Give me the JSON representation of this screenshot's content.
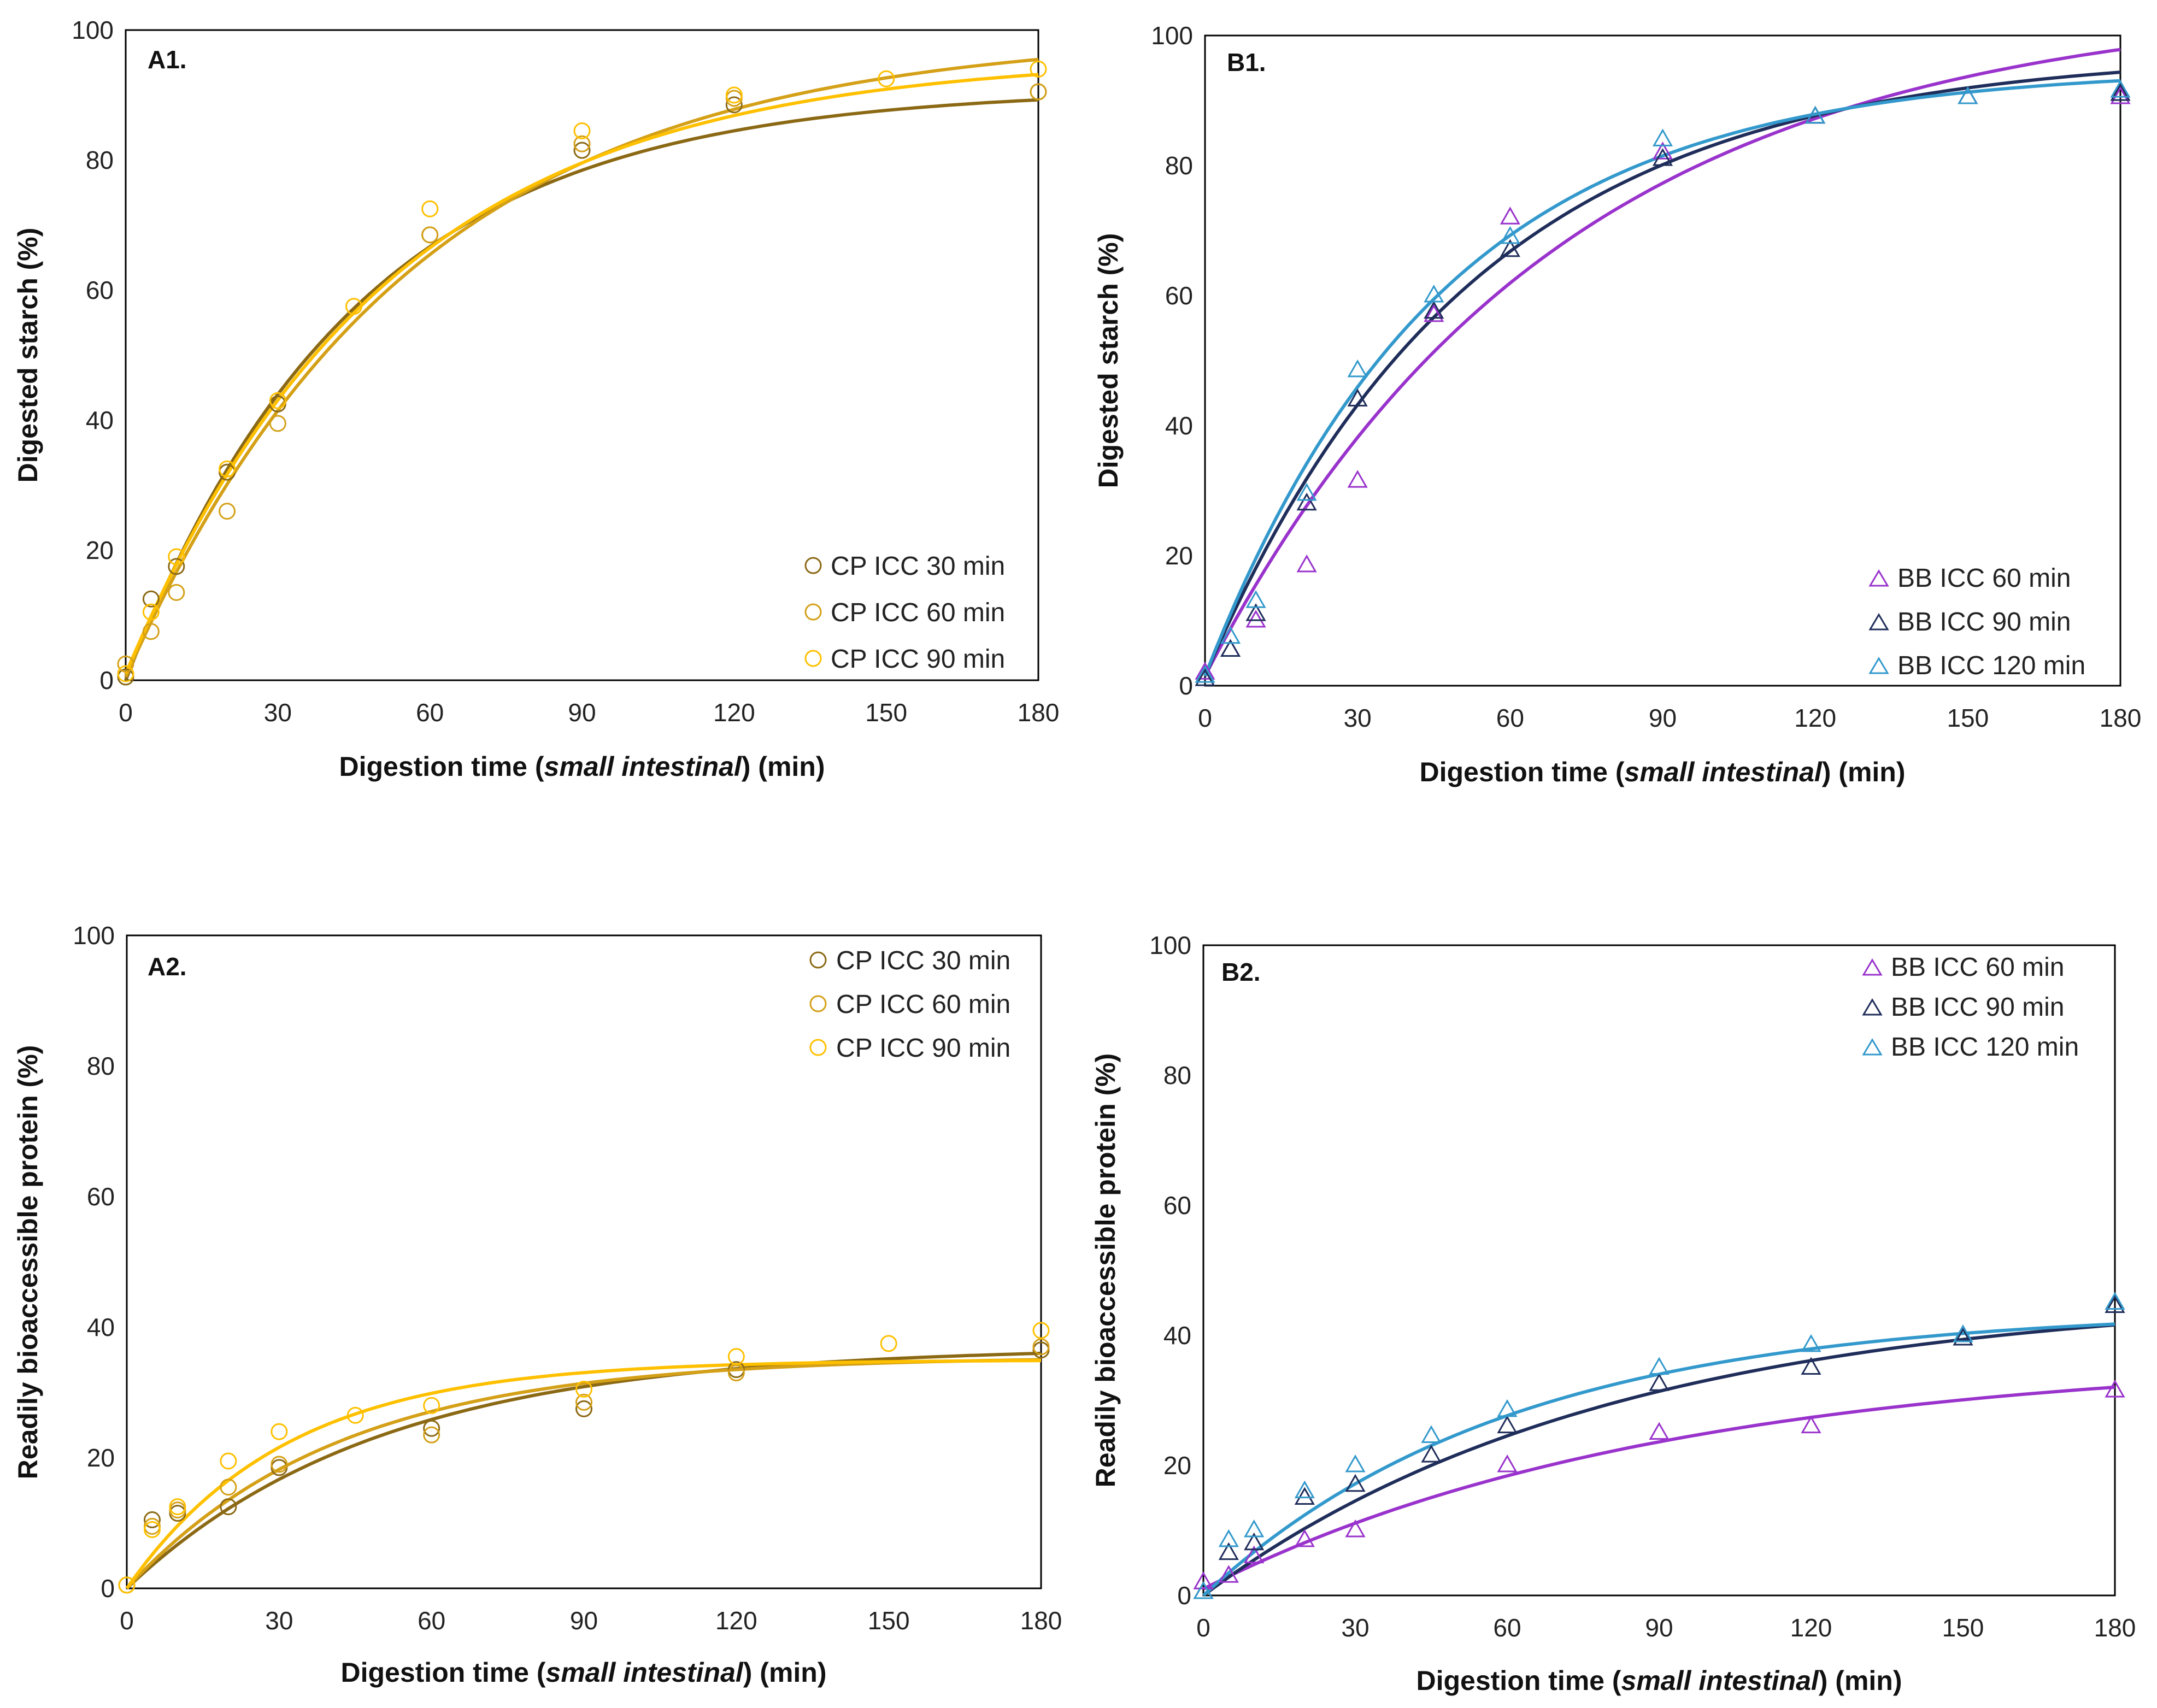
{
  "chart_data": [
    {
      "id": "A1",
      "type": "scatter",
      "panel_label": "A1.",
      "xlabel_prefix": "Digestion time (",
      "xlabel_italic": "small intestinal",
      "xlabel_suffix": ") (min)",
      "ylabel": "Digested starch (%)",
      "xlim": [
        0,
        180
      ],
      "ylim": [
        0,
        100
      ],
      "xticks": [
        0,
        30,
        60,
        90,
        120,
        150,
        180
      ],
      "yticks": [
        0,
        20,
        40,
        60,
        80,
        100
      ],
      "marker": "circle",
      "series": [
        {
          "name": "CP ICC 30 min",
          "color": "#8B6914",
          "points": [
            [
              0,
              0.5
            ],
            [
              5,
              12.5
            ],
            [
              10,
              17.5
            ],
            [
              20,
              32
            ],
            [
              30,
              42.5
            ],
            [
              60,
              68.5
            ],
            [
              90,
              81.5
            ],
            [
              120,
              88.5
            ],
            [
              180,
              90.5
            ]
          ],
          "fit": {
            "a": 91,
            "k": 0.022,
            "c": 0
          }
        },
        {
          "name": "CP ICC 60 min",
          "color": "#D4A017",
          "points": [
            [
              0,
              2.5
            ],
            [
              5,
              7.5
            ],
            [
              10,
              13.5
            ],
            [
              20,
              26
            ],
            [
              30,
              39.5
            ],
            [
              60,
              68.5
            ],
            [
              90,
              82.5
            ],
            [
              120,
              89.5
            ],
            [
              180,
              90.5
            ]
          ],
          "fit": {
            "a": 99,
            "k": 0.0178,
            "c": 0.5
          }
        },
        {
          "name": "CP ICC 90 min",
          "color": "#FFC000",
          "points": [
            [
              0,
              1
            ],
            [
              5,
              10.5
            ],
            [
              10,
              19
            ],
            [
              20,
              32.5
            ],
            [
              30,
              43
            ],
            [
              45,
              57.5
            ],
            [
              60,
              72.5
            ],
            [
              90,
              84.5
            ],
            [
              120,
              90
            ],
            [
              150,
              92.5
            ],
            [
              180,
              94
            ]
          ],
          "fit": {
            "a": 95,
            "k": 0.0195,
            "c": 1
          }
        }
      ],
      "legend_position": "bottom-right"
    },
    {
      "id": "B1",
      "type": "scatter",
      "panel_label": "B1.",
      "xlabel_prefix": "Digestion time (",
      "xlabel_italic": "small intestinal",
      "xlabel_suffix": ") (min)",
      "ylabel": "Digested starch (%)",
      "xlim": [
        0,
        180
      ],
      "ylim": [
        0,
        100
      ],
      "xticks": [
        0,
        30,
        60,
        90,
        120,
        150,
        180
      ],
      "yticks": [
        0,
        20,
        40,
        60,
        80,
        100
      ],
      "marker": "triangle",
      "series": [
        {
          "name": "BB ICC 60 min",
          "color": "#9933CC",
          "points": [
            [
              0,
              2
            ],
            [
              5,
              5.5
            ],
            [
              10,
              10
            ],
            [
              20,
              18.5
            ],
            [
              30,
              31.5
            ],
            [
              45,
              57
            ],
            [
              60,
              72
            ],
            [
              90,
              82
            ],
            [
              120,
              87.5
            ],
            [
              150,
              90.5
            ],
            [
              180,
              90.5
            ]
          ],
          "fit": {
            "a": 104,
            "k": 0.0145,
            "c": 1.5
          }
        },
        {
          "name": "BB ICC 90 min",
          "color": "#1F2D5A",
          "points": [
            [
              0,
              1
            ],
            [
              5,
              5.5
            ],
            [
              10,
              11
            ],
            [
              20,
              28
            ],
            [
              30,
              44
            ],
            [
              45,
              57.5
            ],
            [
              60,
              67
            ],
            [
              90,
              81
            ],
            [
              120,
              87.5
            ],
            [
              150,
              90.5
            ],
            [
              180,
              91
            ]
          ],
          "fit": {
            "a": 96,
            "k": 0.019,
            "c": 1.5
          }
        },
        {
          "name": "BB ICC 120 min",
          "color": "#3399CC",
          "points": [
            [
              0,
              1.5
            ],
            [
              5,
              7.5
            ],
            [
              10,
              13
            ],
            [
              20,
              29.5
            ],
            [
              30,
              48.5
            ],
            [
              45,
              60
            ],
            [
              60,
              69
            ],
            [
              90,
              84
            ],
            [
              120,
              87.5
            ],
            [
              150,
              90.5
            ],
            [
              180,
              91.5
            ]
          ],
          "fit": {
            "a": 93.5,
            "k": 0.0215,
            "c": 1.5
          }
        }
      ],
      "legend_position": "bottom-right"
    },
    {
      "id": "A2",
      "type": "scatter",
      "panel_label": "A2.",
      "xlabel_prefix": "Digestion time (",
      "xlabel_italic": "small intestinal",
      "xlabel_suffix": ") (min)",
      "ylabel": "Readily bioaccessible protein (%)",
      "xlim": [
        0,
        180
      ],
      "ylim": [
        0,
        100
      ],
      "xticks": [
        0,
        30,
        60,
        90,
        120,
        150,
        180
      ],
      "yticks": [
        0,
        20,
        40,
        60,
        80,
        100
      ],
      "marker": "circle",
      "series": [
        {
          "name": "CP ICC 30 min",
          "color": "#8B6914",
          "points": [
            [
              0,
              0.5
            ],
            [
              5,
              10.5
            ],
            [
              10,
              11.5
            ],
            [
              20,
              12.5
            ],
            [
              30,
              18.5
            ],
            [
              60,
              24.5
            ],
            [
              90,
              27.5
            ],
            [
              120,
              33.5
            ],
            [
              180,
              36.5
            ]
          ],
          "fit": {
            "a": 37,
            "k": 0.02,
            "c": 0
          }
        },
        {
          "name": "CP ICC 60 min",
          "color": "#D4A017",
          "points": [
            [
              0,
              0.5
            ],
            [
              5,
              9.5
            ],
            [
              10,
              12
            ],
            [
              20,
              15.5
            ],
            [
              30,
              19
            ],
            [
              60,
              23.5
            ],
            [
              90,
              28.5
            ],
            [
              120,
              33
            ],
            [
              180,
              37
            ]
          ],
          "fit": {
            "a": 35.5,
            "k": 0.024,
            "c": 0
          }
        },
        {
          "name": "CP ICC 90 min",
          "color": "#FFC000",
          "points": [
            [
              0,
              0.5
            ],
            [
              5,
              9
            ],
            [
              10,
              12.5
            ],
            [
              20,
              19.5
            ],
            [
              30,
              24
            ],
            [
              45,
              26.5
            ],
            [
              60,
              28
            ],
            [
              90,
              30.5
            ],
            [
              120,
              35.5
            ],
            [
              150,
              37.5
            ],
            [
              180,
              39.5
            ]
          ],
          "fit": {
            "a": 35,
            "k": 0.032,
            "c": 0
          }
        }
      ],
      "legend_position": "top-right"
    },
    {
      "id": "B2",
      "type": "scatter",
      "panel_label": "B2.",
      "xlabel_prefix": "Digestion time (",
      "xlabel_italic": "small intestinal",
      "xlabel_suffix": ") (min)",
      "ylabel": "Readily bioaccessible protein (%)",
      "xlim": [
        0,
        180
      ],
      "ylim": [
        0,
        100
      ],
      "xticks": [
        0,
        30,
        60,
        90,
        120,
        150,
        180
      ],
      "yticks": [
        0,
        20,
        40,
        60,
        80,
        100
      ],
      "marker": "triangle",
      "series": [
        {
          "name": "BB ICC 60 min",
          "color": "#9933CC",
          "points": [
            [
              0,
              2
            ],
            [
              5,
              3
            ],
            [
              10,
              6
            ],
            [
              20,
              8.5
            ],
            [
              30,
              10
            ],
            [
              60,
              20
            ],
            [
              90,
              25
            ],
            [
              120,
              26
            ],
            [
              180,
              31.5
            ]
          ],
          "fit": {
            "a": 36,
            "k": 0.011,
            "c": 1
          }
        },
        {
          "name": "BB ICC 90 min",
          "color": "#1F2D5A",
          "points": [
            [
              0,
              0.5
            ],
            [
              5,
              6.5
            ],
            [
              10,
              8
            ],
            [
              20,
              15
            ],
            [
              30,
              17
            ],
            [
              45,
              21.5
            ],
            [
              60,
              26
            ],
            [
              90,
              32.5
            ],
            [
              120,
              35
            ],
            [
              150,
              39.5
            ],
            [
              180,
              44.5
            ]
          ],
          "fit": {
            "a": 46.5,
            "k": 0.0125,
            "c": 0
          }
        },
        {
          "name": "BB ICC 120 min",
          "color": "#3399CC",
          "points": [
            [
              0,
              0.5
            ],
            [
              5,
              8.5
            ],
            [
              10,
              10
            ],
            [
              20,
              16
            ],
            [
              30,
              20
            ],
            [
              45,
              24.5
            ],
            [
              60,
              28.5
            ],
            [
              90,
              35
            ],
            [
              120,
              38.5
            ],
            [
              150,
              40
            ],
            [
              180,
              45
            ]
          ],
          "fit": {
            "a": 44,
            "k": 0.0165,
            "c": 0
          }
        }
      ],
      "legend_position": "top-right"
    }
  ]
}
